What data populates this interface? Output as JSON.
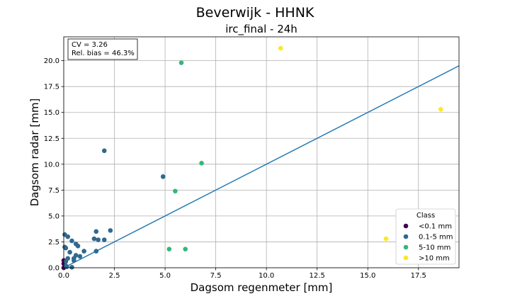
{
  "chart_data": {
    "type": "scatter",
    "title": "Beverwijk - HHNK",
    "subtitle": "irc_final - 24h",
    "xlabel": "Dagsom regenmeter [mm]",
    "ylabel": "Dagsom radar [mm]",
    "xlim": [
      0,
      19.5
    ],
    "ylim": [
      0,
      22.3
    ],
    "xticks": [
      0.0,
      2.5,
      5.0,
      7.5,
      10.0,
      12.5,
      15.0,
      17.5
    ],
    "yticks": [
      0.0,
      2.5,
      5.0,
      7.5,
      10.0,
      12.5,
      15.0,
      17.5,
      20.0
    ],
    "grid": true,
    "stats": [
      "CV = 3.26",
      "Rel. bias = 46.3%"
    ],
    "line": {
      "x": [
        0,
        19.5
      ],
      "y": [
        0,
        19.5
      ],
      "color": "#1f77b4"
    },
    "legend": {
      "title": "Class",
      "position": "lower-right"
    },
    "series": [
      {
        "name": "<0.1 mm",
        "color": "#440154",
        "points": [
          [
            0.0,
            0.0
          ],
          [
            0.0,
            0.4
          ],
          [
            0.0,
            0.7
          ],
          [
            0.05,
            0.15
          ]
        ]
      },
      {
        "name": "0.1-5 mm",
        "color": "#31688e",
        "points": [
          [
            0.05,
            3.2
          ],
          [
            0.2,
            3.0
          ],
          [
            0.05,
            2.0
          ],
          [
            0.1,
            1.9
          ],
          [
            0.4,
            2.6
          ],
          [
            0.3,
            1.5
          ],
          [
            0.6,
            2.3
          ],
          [
            0.7,
            2.1
          ],
          [
            0.2,
            0.9
          ],
          [
            0.1,
            0.6
          ],
          [
            0.5,
            0.9
          ],
          [
            0.5,
            0.7
          ],
          [
            0.6,
            1.2
          ],
          [
            0.8,
            1.1
          ],
          [
            1.0,
            1.6
          ],
          [
            0.1,
            0.2
          ],
          [
            0.15,
            0.1
          ],
          [
            0.4,
            0.05
          ],
          [
            1.6,
            3.5
          ],
          [
            2.3,
            3.6
          ],
          [
            1.5,
            2.8
          ],
          [
            1.7,
            2.7
          ],
          [
            2.0,
            2.7
          ],
          [
            1.6,
            1.6
          ],
          [
            2.0,
            11.3
          ],
          [
            4.9,
            8.8
          ]
        ]
      },
      {
        "name": "5-10 mm",
        "color": "#35b779",
        "points": [
          [
            5.8,
            19.8
          ],
          [
            6.8,
            10.1
          ],
          [
            5.5,
            7.4
          ],
          [
            5.2,
            1.8
          ],
          [
            6.0,
            1.8
          ]
        ]
      },
      {
        "name": ">10 mm",
        "color": "#fde725",
        "points": [
          [
            10.7,
            21.2
          ],
          [
            18.6,
            15.3
          ],
          [
            15.9,
            2.8
          ]
        ]
      }
    ]
  }
}
